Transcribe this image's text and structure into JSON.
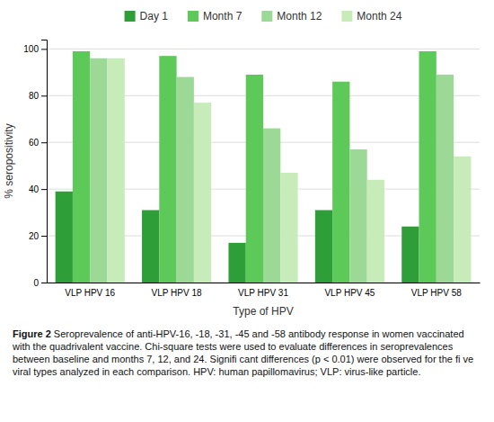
{
  "chart_data": {
    "type": "bar",
    "categories": [
      "VLP HPV 16",
      "VLP HPV 18",
      "VLP HPV 31",
      "VLP HPV 45",
      "VLP HPV 58"
    ],
    "series": [
      {
        "name": "Day 1",
        "color": "#2d9e38",
        "values": [
          39,
          31,
          17,
          31,
          24
        ]
      },
      {
        "name": "Month 7",
        "color": "#5dc959",
        "values": [
          99,
          97,
          89,
          86,
          99
        ]
      },
      {
        "name": "Month 12",
        "color": "#9cd896",
        "values": [
          96,
          88,
          66,
          57,
          89
        ]
      },
      {
        "name": "Month 24",
        "color": "#c7ecba",
        "values": [
          96,
          77,
          47,
          44,
          54
        ]
      }
    ],
    "xlabel": "Type of HPV",
    "ylabel": "% seropositivity",
    "ylim": [
      0,
      104
    ],
    "yticks": [
      0,
      20,
      40,
      60,
      80,
      100
    ],
    "grid": true,
    "legend": "top",
    "annotations": [
      "Figure 2",
      "Seroprevalence of anti-HPV-16, -18, -31, -45 and -58 antibody response in women vaccinated with the quadrivalent vaccine. Chi-square tests were used to evaluate differences in seroprevalences between baseline and months 7, 12, and 24. Signifi cant differences (p < 0.01) were observed for the fi ve viral types analyzed in each comparison. HPV: human papillomavirus; VLP: virus-like particle."
    ]
  }
}
